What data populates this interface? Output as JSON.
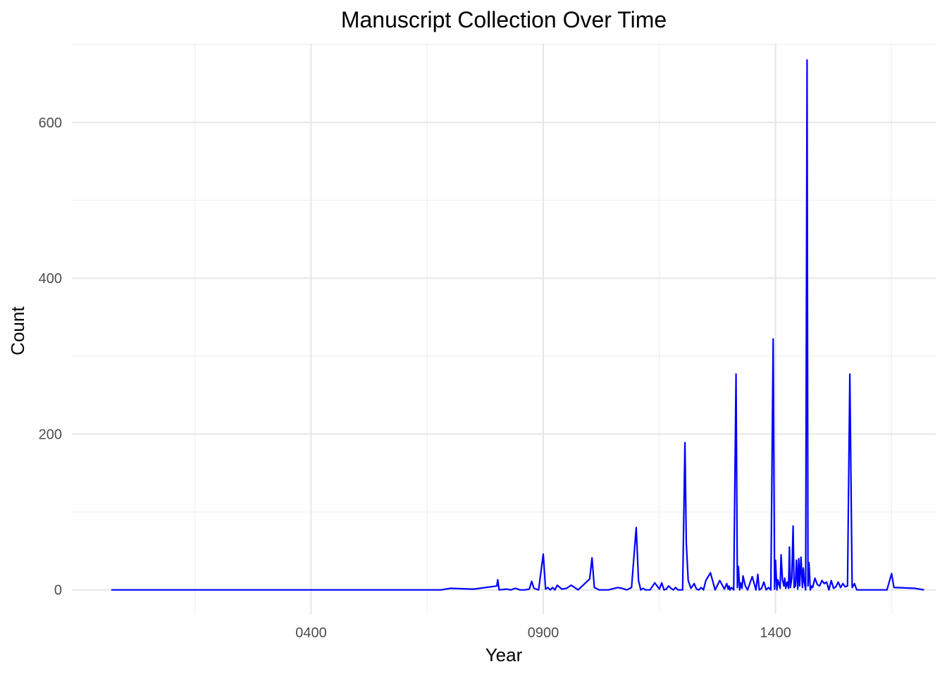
{
  "chart_data": {
    "type": "line",
    "title": "Manuscript Collection Over Time",
    "xlabel": "Year",
    "ylabel": "Count",
    "xlim": [
      -115,
      1745
    ],
    "ylim": [
      -31,
      701
    ],
    "x_major_ticks": [
      400,
      900,
      1400
    ],
    "x_minor_ticks": [
      150,
      650,
      1150,
      1650
    ],
    "x_tick_labels": [
      "0400",
      "0900",
      "1400"
    ],
    "y_major_ticks": [
      0,
      200,
      400,
      600
    ],
    "y_minor_ticks": [
      100,
      300,
      500,
      700
    ],
    "y_tick_labels": [
      "0",
      "200",
      "400",
      "600"
    ],
    "grid": true,
    "legend": "none",
    "series_color": "#0000ff",
    "series": [
      {
        "x": [
          -30,
          0,
          100,
          200,
          300,
          400,
          500,
          600,
          650,
          680,
          700,
          750,
          800,
          802,
          805,
          820,
          830,
          840,
          850,
          855,
          860,
          870,
          875,
          880,
          890,
          900,
          905,
          910,
          915,
          920,
          925,
          930,
          940,
          950,
          960,
          975,
          1000,
          1005,
          1010,
          1020,
          1040,
          1060,
          1070,
          1080,
          1090,
          1100,
          1105,
          1110,
          1115,
          1120,
          1130,
          1140,
          1150,
          1155,
          1160,
          1165,
          1170,
          1175,
          1180,
          1185,
          1190,
          1200,
          1205,
          1208,
          1212,
          1218,
          1225,
          1230,
          1235,
          1240,
          1245,
          1250,
          1260,
          1270,
          1280,
          1290,
          1295,
          1298,
          1300,
          1302,
          1305,
          1310,
          1315,
          1318,
          1320,
          1323,
          1325,
          1328,
          1330,
          1335,
          1340,
          1350,
          1358,
          1362,
          1365,
          1370,
          1375,
          1380,
          1385,
          1390,
          1395,
          1398,
          1400,
          1403,
          1405,
          1410,
          1412,
          1415,
          1418,
          1420,
          1422,
          1425,
          1428,
          1430,
          1432,
          1435,
          1438,
          1440,
          1443,
          1445,
          1448,
          1450,
          1452,
          1455,
          1458,
          1460,
          1462,
          1465,
          1468,
          1470,
          1472,
          1475,
          1478,
          1480,
          1485,
          1490,
          1495,
          1500,
          1505,
          1510,
          1515,
          1520,
          1525,
          1530,
          1535,
          1540,
          1545,
          1550,
          1555,
          1560,
          1565,
          1570,
          1575,
          1580,
          1590,
          1600,
          1620,
          1640,
          1650,
          1655,
          1660,
          1700,
          1720
        ],
        "y": [
          0,
          0,
          0,
          0,
          0,
          0,
          0,
          0,
          0,
          0,
          2,
          1,
          5,
          13,
          0,
          1,
          0,
          2,
          0,
          0,
          0,
          1,
          11,
          2,
          0,
          46,
          1,
          3,
          0,
          3,
          0,
          6,
          1,
          2,
          6,
          0,
          14,
          41,
          3,
          0,
          0,
          3,
          2,
          0,
          3,
          80,
          12,
          0,
          2,
          0,
          0,
          9,
          1,
          9,
          0,
          1,
          5,
          2,
          0,
          3,
          0,
          0,
          189,
          60,
          12,
          2,
          8,
          1,
          0,
          3,
          0,
          12,
          22,
          0,
          12,
          1,
          8,
          1,
          5,
          0,
          3,
          0,
          277,
          3,
          30,
          0,
          9,
          2,
          18,
          5,
          0,
          17,
          0,
          20,
          0,
          2,
          10,
          0,
          3,
          0,
          322,
          1,
          38,
          0,
          13,
          2,
          45,
          13,
          5,
          15,
          2,
          10,
          2,
          55,
          3,
          15,
          82,
          3,
          5,
          38,
          1,
          40,
          5,
          42,
          3,
          28,
          10,
          0,
          680,
          5,
          35,
          0,
          5,
          3,
          15,
          7,
          5,
          12,
          8,
          10,
          0,
          12,
          2,
          4,
          10,
          3,
          8,
          4,
          5,
          277,
          3,
          8,
          0,
          0,
          0,
          0,
          0,
          0,
          21,
          3,
          3,
          2,
          0
        ]
      }
    ]
  }
}
